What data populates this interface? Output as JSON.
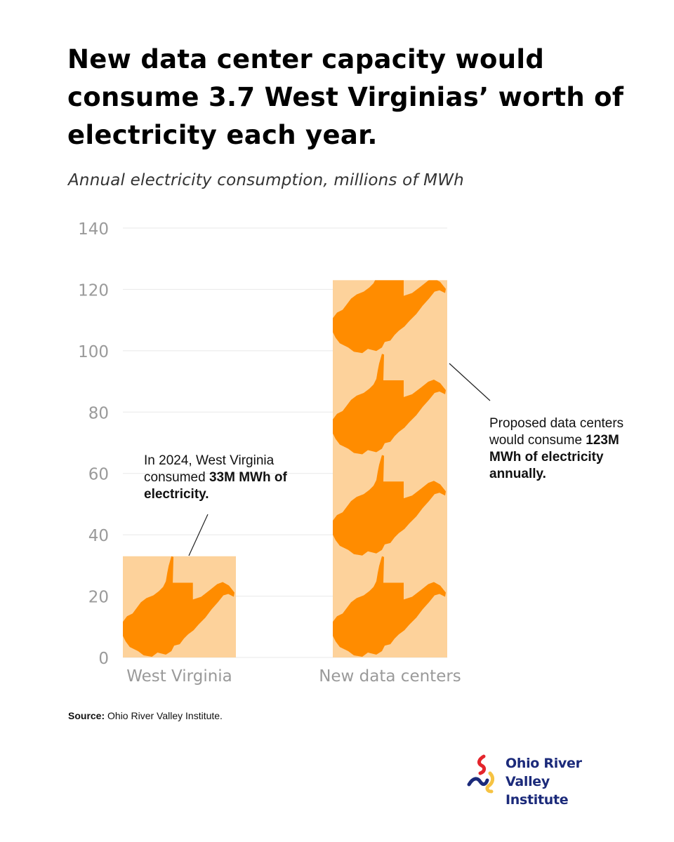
{
  "title": "New data center capacity would consume 3.7 West Virginias’ worth of electricity each year.",
  "subtitle": "Annual electricity consumption, millions of MWh",
  "chart_data": {
    "type": "bar",
    "categories": [
      "West Virginia",
      "New data centers"
    ],
    "values": [
      33,
      123
    ],
    "ylim": [
      0,
      140
    ],
    "yticks": [
      0,
      20,
      40,
      60,
      80,
      100,
      120,
      140
    ],
    "grid": true,
    "colors": {
      "bar_fill": "#fdd29b",
      "state_shape": "#ff8c00",
      "grid": "#e8e8e8",
      "tick_text": "#9a9a9a"
    },
    "annotations": [
      {
        "target": "West Virginia",
        "text_parts": [
          {
            "t": "In 2024, West Virginia consumed ",
            "b": false
          },
          {
            "t": "33M MWh of electricity.",
            "b": true
          }
        ]
      },
      {
        "target": "New data centers",
        "text_parts": [
          {
            "t": "Proposed data centers would consume ",
            "b": false
          },
          {
            "t": "123M MWh of electricity annually.",
            "b": true
          }
        ]
      }
    ]
  },
  "source": {
    "label": "Source:",
    "text": " Ohio River Valley Institute."
  },
  "logo": {
    "line1": "Ohio River",
    "line2": "Valley Institute",
    "colors": {
      "text": "#1b2a7a",
      "red": "#e4252c",
      "yellow": "#f6c343",
      "navy": "#1b2a7a"
    }
  }
}
